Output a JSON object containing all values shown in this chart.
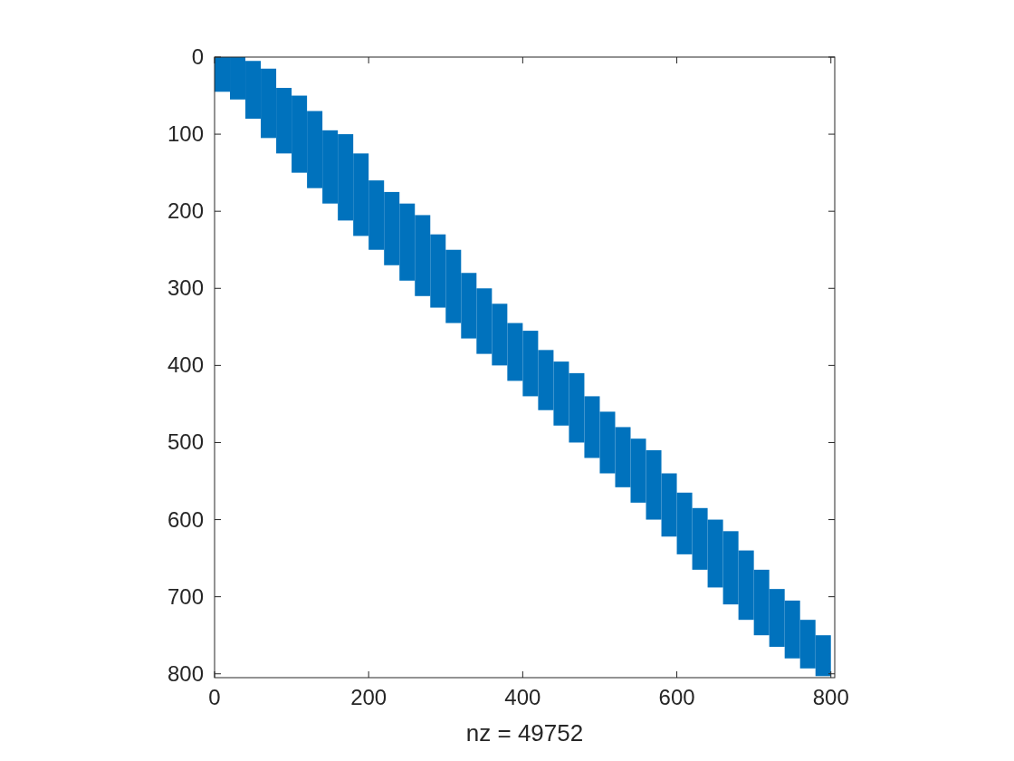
{
  "chart_data": {
    "type": "bar",
    "xlabel": "nz = 49752",
    "color": "#0072bd",
    "x": [
      10,
      30,
      50,
      70,
      90,
      110,
      130,
      150,
      170,
      190,
      210,
      230,
      250,
      270,
      290,
      310,
      330,
      350,
      370,
      390,
      410,
      430,
      450,
      470,
      490,
      510,
      530,
      550,
      570,
      590,
      610,
      630,
      650,
      670,
      690,
      710,
      730,
      750,
      770,
      790
    ],
    "base": [
      0,
      0,
      5,
      15,
      40,
      50,
      70,
      95,
      100,
      125,
      160,
      175,
      190,
      205,
      230,
      250,
      280,
      300,
      320,
      345,
      355,
      380,
      395,
      410,
      440,
      460,
      480,
      495,
      510,
      540,
      565,
      585,
      600,
      615,
      640,
      665,
      690,
      705,
      730,
      750
    ],
    "values": [
      45,
      55,
      75,
      90,
      85,
      100,
      100,
      95,
      112,
      107,
      90,
      95,
      100,
      105,
      95,
      95,
      85,
      85,
      80,
      75,
      85,
      78,
      83,
      90,
      80,
      80,
      78,
      83,
      90,
      82,
      80,
      80,
      88,
      95,
      90,
      85,
      75,
      75,
      63,
      53
    ],
    "xlim": [
      0,
      805
    ],
    "ylim": [
      805,
      0
    ],
    "xticks": [
      0,
      200,
      400,
      600,
      800
    ],
    "yticks": [
      0,
      100,
      200,
      300,
      400,
      500,
      600,
      700,
      800
    ]
  }
}
